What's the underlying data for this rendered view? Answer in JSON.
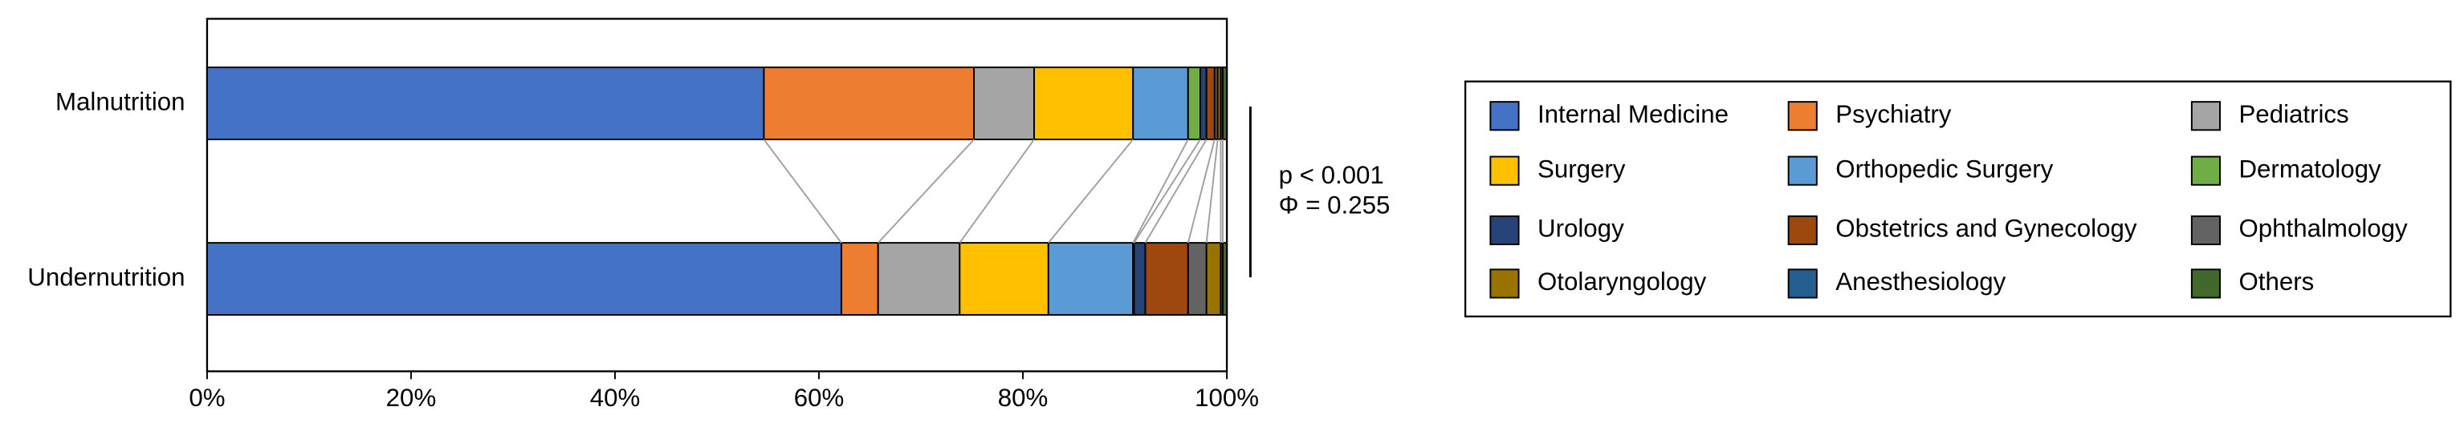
{
  "chart_data": {
    "type": "stacked-barh",
    "categories": [
      "Malnutrition",
      "Undernutrition"
    ],
    "xlim": [
      0,
      100
    ],
    "xticks": [
      {
        "value": 0,
        "label": "0%"
      },
      {
        "value": 20,
        "label": "20%"
      },
      {
        "value": 40,
        "label": "40%"
      },
      {
        "value": 60,
        "label": "60%"
      },
      {
        "value": 80,
        "label": "80%"
      },
      {
        "value": 100,
        "label": "100%"
      }
    ],
    "annotations": [
      "p < 0.001",
      "Φ = 0.255"
    ],
    "legend": "right",
    "series": [
      {
        "name": "Internal Medicine",
        "color": "#4472c4",
        "values": [
          54.6,
          62.2
        ]
      },
      {
        "name": "Psychiatry",
        "color": "#ed7d31",
        "values": [
          20.6,
          3.6
        ]
      },
      {
        "name": "Pediatrics",
        "color": "#a5a5a5",
        "values": [
          5.9,
          8.0
        ]
      },
      {
        "name": "Surgery",
        "color": "#ffc000",
        "values": [
          9.7,
          8.7
        ]
      },
      {
        "name": "Orthopedic Surgery",
        "color": "#5b9bd5",
        "values": [
          5.4,
          8.3
        ]
      },
      {
        "name": "Dermatology",
        "color": "#70ad47",
        "values": [
          1.2,
          0.1
        ]
      },
      {
        "name": "Urology",
        "color": "#264478",
        "values": [
          0.6,
          1.1
        ]
      },
      {
        "name": "Obstetrics and Gynecology",
        "color": "#9e480e",
        "values": [
          0.8,
          4.2
        ]
      },
      {
        "name": "Ophthalmology",
        "color": "#636363",
        "values": [
          0.3,
          1.8
        ]
      },
      {
        "name": "Otolaryngology",
        "color": "#997300",
        "values": [
          0.3,
          1.4
        ]
      },
      {
        "name": "Anesthesiology",
        "color": "#255e91",
        "values": [
          0.2,
          0.2
        ]
      },
      {
        "name": "Others",
        "color": "#43682b",
        "values": [
          0.4,
          0.4
        ]
      }
    ]
  }
}
